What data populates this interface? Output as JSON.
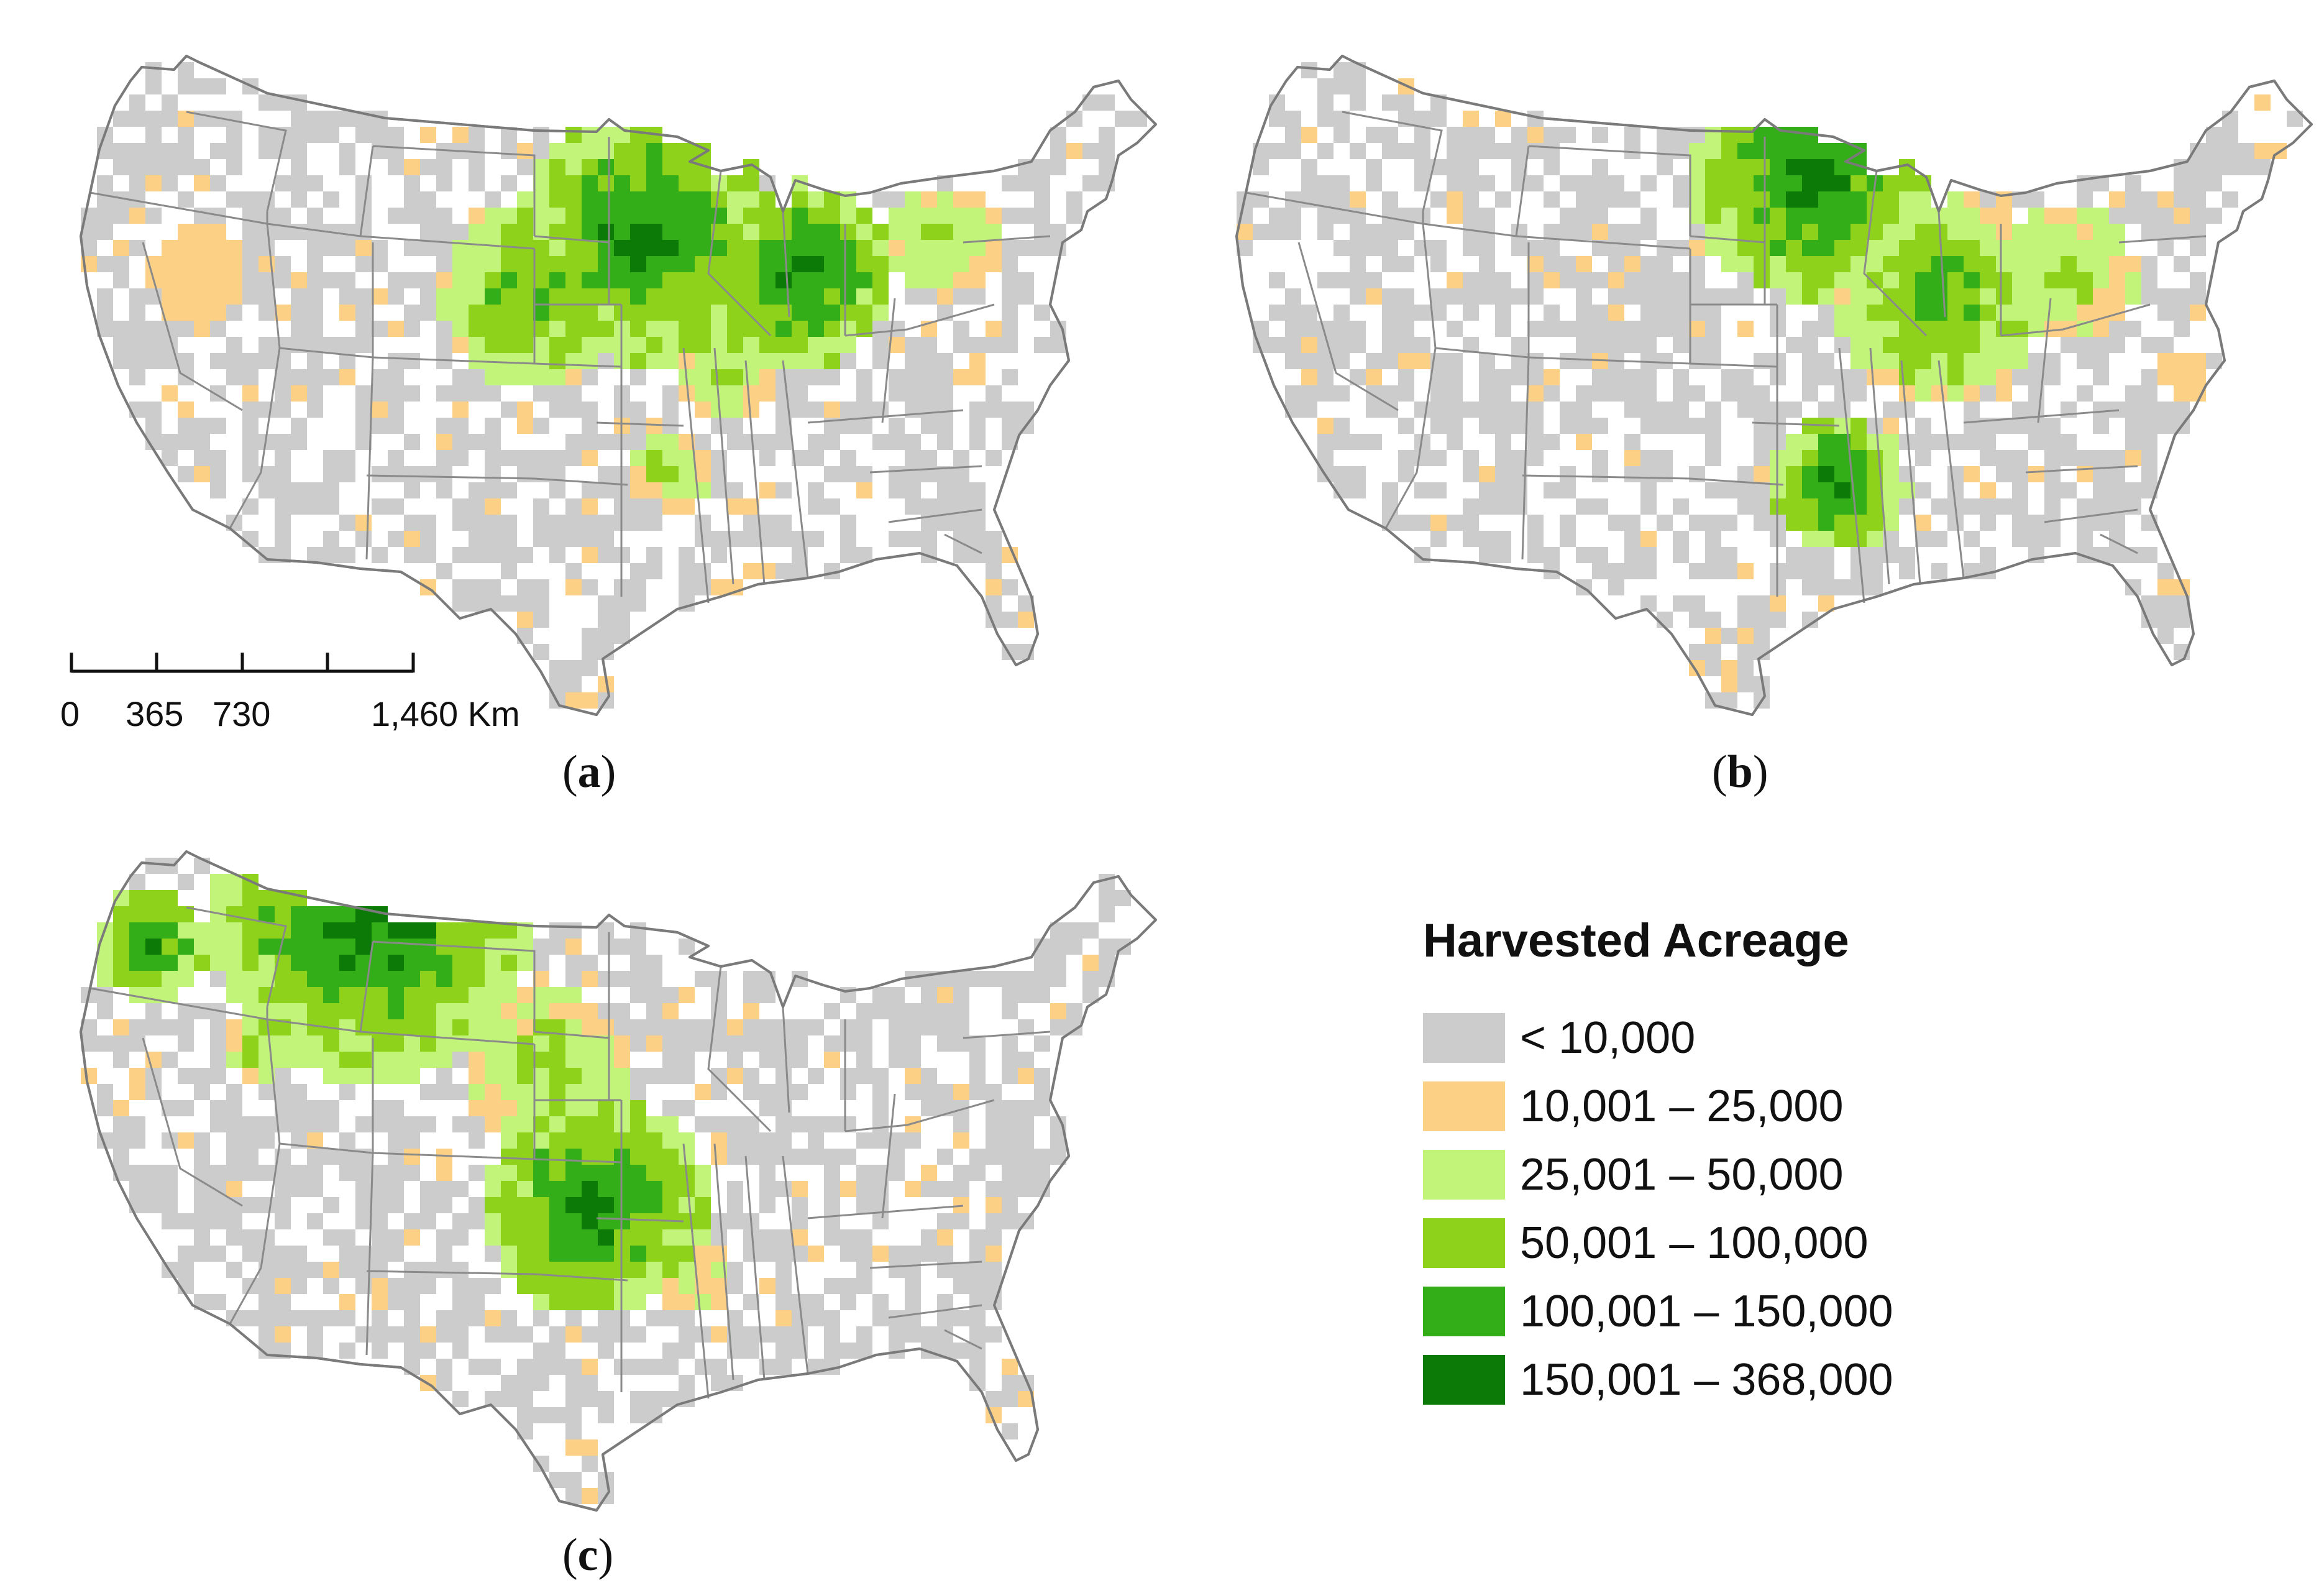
{
  "panels": [
    {
      "id": "a",
      "open": "(",
      "letter": "a",
      "close": ")"
    },
    {
      "id": "b",
      "open": "(",
      "letter": "b",
      "close": ")"
    },
    {
      "id": "c",
      "open": "(",
      "letter": "c",
      "close": ")"
    }
  ],
  "scale_bar": {
    "ticks": [
      "0",
      "365",
      "730",
      "1,460 Km"
    ]
  },
  "legend": {
    "title": "Harvested Acreage",
    "classes": [
      {
        "label": "< 10,000",
        "color": "#cccccc"
      },
      {
        "label": "10,001 – 25,000",
        "color": "#fdd185"
      },
      {
        "label": "25,001 – 50,000",
        "color": "#c2f47a"
      },
      {
        "label": "50,001 – 100,000",
        "color": "#8ed21c"
      },
      {
        "label": "100,001 – 150,000",
        "color": "#33ad18"
      },
      {
        "label": "150,001 – 368,000",
        "color": "#0b7a06"
      }
    ]
  }
}
